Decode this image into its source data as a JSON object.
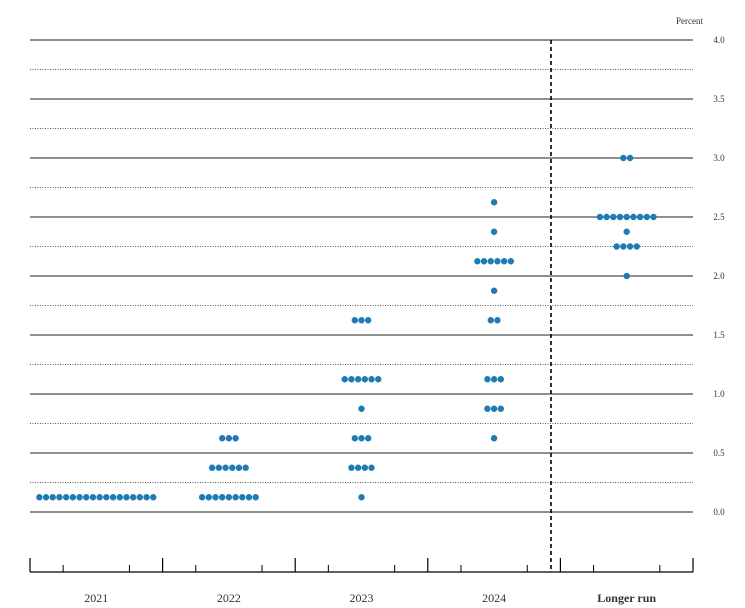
{
  "chart_data": {
    "type": "scatter",
    "unit_label": "Percent",
    "categories": [
      "2021",
      "2022",
      "2023",
      "2024",
      "Longer run"
    ],
    "ylim": [
      0.0,
      4.0
    ],
    "yticks": [
      "0.0",
      "0.5",
      "1.0",
      "1.5",
      "2.0",
      "2.5",
      "3.0",
      "3.5",
      "4.0"
    ],
    "grid": "dotted horizontal lines every 0.25; solid lines at whole and half percent",
    "dot_color": "#1f7bb3",
    "columns": [
      {
        "category": "2021",
        "points": [
          {
            "y": 0.125,
            "count": 18
          }
        ]
      },
      {
        "category": "2022",
        "points": [
          {
            "y": 0.125,
            "count": 9
          },
          {
            "y": 0.375,
            "count": 6
          },
          {
            "y": 0.625,
            "count": 3
          }
        ]
      },
      {
        "category": "2023",
        "points": [
          {
            "y": 0.125,
            "count": 1
          },
          {
            "y": 0.375,
            "count": 4
          },
          {
            "y": 0.625,
            "count": 3
          },
          {
            "y": 0.875,
            "count": 1
          },
          {
            "y": 1.125,
            "count": 6
          },
          {
            "y": 1.625,
            "count": 3
          }
        ]
      },
      {
        "category": "2024",
        "points": [
          {
            "y": 0.625,
            "count": 1
          },
          {
            "y": 0.875,
            "count": 3
          },
          {
            "y": 1.125,
            "count": 3
          },
          {
            "y": 1.625,
            "count": 2
          },
          {
            "y": 1.875,
            "count": 1
          },
          {
            "y": 2.125,
            "count": 6
          },
          {
            "y": 2.375,
            "count": 1
          },
          {
            "y": 2.625,
            "count": 1
          }
        ]
      },
      {
        "category": "Longer run",
        "points": [
          {
            "y": 2.0,
            "count": 1
          },
          {
            "y": 2.25,
            "count": 4
          },
          {
            "y": 2.375,
            "count": 1
          },
          {
            "y": 2.5,
            "count": 9
          },
          {
            "y": 3.0,
            "count": 2
          }
        ]
      }
    ]
  }
}
